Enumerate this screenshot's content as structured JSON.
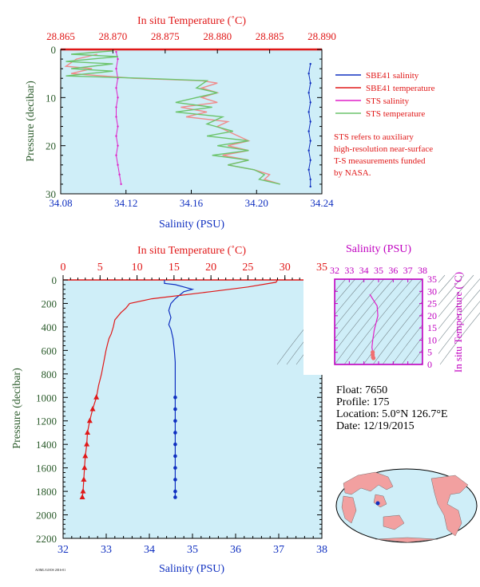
{
  "colors": {
    "plot_bg": "#cfeef8",
    "salinity": "#1030c0",
    "temperature": "#e01818",
    "sts_salinity": "#e020c8",
    "sts_temperature": "#6cc46c",
    "pressure_axis": "#2a5a2a",
    "magenta_axis": "#c000c0"
  },
  "legend": {
    "items": [
      {
        "label": "SBE41 salinity",
        "color": "#1030c0"
      },
      {
        "label": "SBE41 temperature",
        "color": "#e01818"
      },
      {
        "label": "STS salinity",
        "color": "#e020c8"
      },
      {
        "label": "STS temperature",
        "color": "#6cc46c"
      }
    ],
    "note": [
      "STS refers to auxiliary",
      "high-resolution near-surface",
      "T-S measurements funded",
      "by NASA."
    ]
  },
  "float_info": {
    "float": "Float:  7650",
    "profile": "Profile:  175",
    "location": "Location:  5.0°N  126.7°E",
    "date": "Date:  12/19/2015"
  },
  "footer": {
    "code": "AOML/GOOS 2016-01"
  },
  "chart_data": [
    {
      "type": "line",
      "title": "",
      "top_axis_label": "In situ Temperature (˚C)",
      "top_ticks": [
        "28.865",
        "28.870",
        "28.875",
        "28.880",
        "28.885",
        "28.890"
      ],
      "top_range": [
        28.865,
        28.89
      ],
      "xlabel": "Salinity (PSU)",
      "x_ticks": [
        "34.08",
        "34.12",
        "34.16",
        "34.20",
        "34.24"
      ],
      "x_range": [
        34.08,
        34.24
      ],
      "ylabel": "Pressure (decibar)",
      "y_ticks": [
        "0",
        "10",
        "20",
        "30"
      ],
      "y_range": [
        0,
        30
      ],
      "series": [
        {
          "name": "SBE41 salinity",
          "axis": "bottom",
          "values": [
            [
              34.233,
              3
            ],
            [
              34.232,
              5
            ],
            [
              34.233,
              7
            ],
            [
              34.232,
              9
            ],
            [
              34.233,
              11
            ],
            [
              34.232,
              13
            ],
            [
              34.233,
              15
            ],
            [
              34.232,
              17
            ],
            [
              34.233,
              19
            ],
            [
              34.232,
              21
            ],
            [
              34.233,
              23
            ],
            [
              34.232,
              25
            ],
            [
              34.233,
              27
            ],
            [
              34.233,
              28.5
            ]
          ]
        },
        {
          "name": "SBE41 temperature",
          "axis": "top",
          "values": [
            [
              28.8685,
              1
            ],
            [
              28.8665,
              2
            ],
            [
              28.8655,
              3.5
            ],
            [
              28.868,
              4
            ],
            [
              28.866,
              5
            ],
            [
              28.872,
              6
            ],
            [
              28.8785,
              6.5
            ],
            [
              28.88,
              7
            ],
            [
              28.8785,
              8
            ],
            [
              28.88,
              9
            ],
            [
              28.8785,
              10
            ],
            [
              28.88,
              11
            ],
            [
              28.8765,
              12
            ],
            [
              28.879,
              13
            ],
            [
              28.877,
              14
            ],
            [
              28.881,
              15
            ],
            [
              28.88,
              16
            ],
            [
              28.882,
              18
            ],
            [
              28.883,
              19
            ],
            [
              28.881,
              20
            ],
            [
              28.883,
              21
            ],
            [
              28.8805,
              22
            ],
            [
              28.883,
              23
            ],
            [
              28.881,
              24
            ],
            [
              28.8835,
              25
            ],
            [
              28.885,
              26
            ],
            [
              28.8845,
              27
            ],
            [
              28.886,
              28
            ]
          ]
        },
        {
          "name": "STS salinity",
          "axis": "bottom",
          "values": [
            [
              34.114,
              0.5
            ],
            [
              34.115,
              2
            ],
            [
              34.114,
              4
            ],
            [
              34.115,
              6
            ],
            [
              34.114,
              8
            ],
            [
              34.115,
              10
            ],
            [
              34.114,
              12
            ],
            [
              34.114,
              14
            ],
            [
              34.115,
              16
            ],
            [
              34.114,
              18
            ],
            [
              34.115,
              20
            ],
            [
              34.114,
              22
            ],
            [
              34.115,
              24
            ],
            [
              34.116,
              26
            ],
            [
              34.117,
              28
            ]
          ]
        },
        {
          "name": "STS temperature",
          "axis": "top",
          "values": [
            [
              28.87,
              0.3
            ],
            [
              28.866,
              1
            ],
            [
              28.8705,
              1.5
            ],
            [
              28.8655,
              2.5
            ],
            [
              28.87,
              3
            ],
            [
              28.866,
              4
            ],
            [
              28.87,
              4.5
            ],
            [
              28.8655,
              5.5
            ],
            [
              28.873,
              6
            ],
            [
              28.879,
              6.5
            ],
            [
              28.878,
              8
            ],
            [
              28.88,
              9
            ],
            [
              28.876,
              11
            ],
            [
              28.8795,
              12
            ],
            [
              28.876,
              13
            ],
            [
              28.8805,
              14
            ],
            [
              28.879,
              15.5
            ],
            [
              28.8815,
              17
            ],
            [
              28.879,
              18
            ],
            [
              28.883,
              19
            ],
            [
              28.88,
              20
            ],
            [
              28.883,
              21
            ],
            [
              28.8795,
              22
            ],
            [
              28.883,
              23
            ],
            [
              28.881,
              24
            ],
            [
              28.8835,
              25
            ],
            [
              28.8845,
              26
            ],
            [
              28.884,
              27
            ],
            [
              28.886,
              28
            ]
          ]
        }
      ]
    },
    {
      "type": "line",
      "title": "",
      "top_axis_label": "In situ Temperature (˚C)",
      "top_ticks": [
        "0",
        "5",
        "10",
        "15",
        "20",
        "25",
        "30",
        "35"
      ],
      "top_range": [
        0,
        35
      ],
      "xlabel": "Salinity (PSU)",
      "x_ticks": [
        "32",
        "33",
        "34",
        "35",
        "36",
        "37",
        "38"
      ],
      "x_range": [
        32,
        38
      ],
      "ylabel": "Pressure (decibar)",
      "y_ticks": [
        "0",
        "200",
        "400",
        "600",
        "800",
        "1000",
        "1200",
        "1400",
        "1600",
        "1800",
        "2000",
        "2200"
      ],
      "y_range": [
        0,
        2200
      ],
      "series": [
        {
          "name": "Salinity",
          "axis": "bottom",
          "values": [
            [
              34.35,
              0
            ],
            [
              34.35,
              30
            ],
            [
              34.6,
              40
            ],
            [
              34.8,
              60
            ],
            [
              35.0,
              80
            ],
            [
              34.8,
              100
            ],
            [
              34.7,
              130
            ],
            [
              34.6,
              160
            ],
            [
              34.5,
              200
            ],
            [
              34.45,
              260
            ],
            [
              34.5,
              320
            ],
            [
              34.45,
              380
            ],
            [
              34.5,
              420
            ],
            [
              34.55,
              500
            ],
            [
              34.58,
              600
            ],
            [
              34.6,
              700
            ],
            [
              34.6,
              800
            ],
            [
              34.6,
              900
            ],
            [
              34.6,
              1000
            ],
            [
              34.6,
              1100
            ],
            [
              34.6,
              1200
            ],
            [
              34.6,
              1300
            ],
            [
              34.6,
              1400
            ],
            [
              34.6,
              1500
            ],
            [
              34.6,
              1600
            ],
            [
              34.6,
              1700
            ],
            [
              34.6,
              1800
            ],
            [
              34.6,
              1850
            ]
          ]
        },
        {
          "name": "Temperature",
          "axis": "top",
          "values": [
            [
              29.0,
              0
            ],
            [
              28.8,
              20
            ],
            [
              25.0,
              60
            ],
            [
              20.0,
              100
            ],
            [
              12.0,
              160
            ],
            [
              9.0,
              200
            ],
            [
              8.5,
              240
            ],
            [
              7.8,
              280
            ],
            [
              7.0,
              340
            ],
            [
              6.8,
              400
            ],
            [
              6.5,
              460
            ],
            [
              6.2,
              500
            ],
            [
              6.0,
              550
            ],
            [
              5.8,
              600
            ],
            [
              5.5,
              700
            ],
            [
              5.2,
              800
            ],
            [
              4.8,
              900
            ],
            [
              4.5,
              1000
            ],
            [
              4.0,
              1100
            ],
            [
              3.6,
              1200
            ],
            [
              3.3,
              1300
            ],
            [
              3.2,
              1400
            ],
            [
              3.0,
              1500
            ],
            [
              2.9,
              1600
            ],
            [
              2.8,
              1700
            ],
            [
              2.7,
              1800
            ],
            [
              2.6,
              1850
            ]
          ]
        }
      ],
      "markers_from_pressure": 1000
    },
    {
      "type": "scatter",
      "title": "",
      "xlabel": "Salinity (PSU)",
      "x_ticks": [
        "32",
        "33",
        "34",
        "35",
        "36",
        "37",
        "38"
      ],
      "x_range": [
        32,
        38
      ],
      "ylabel": "In situ Temperature (˚C)",
      "y_ticks": [
        "0",
        "5",
        "10",
        "15",
        "20",
        "25",
        "30",
        "35"
      ],
      "y_range": [
        0,
        35
      ],
      "series": [
        {
          "name": "T-S",
          "values": [
            [
              34.4,
              28.8
            ],
            [
              34.9,
              24
            ],
            [
              34.95,
              20
            ],
            [
              34.7,
              14
            ],
            [
              34.6,
              10
            ],
            [
              34.55,
              7
            ],
            [
              34.6,
              5
            ],
            [
              34.6,
              4
            ],
            [
              34.62,
              3
            ],
            [
              34.65,
              2.6
            ]
          ]
        }
      ]
    }
  ]
}
